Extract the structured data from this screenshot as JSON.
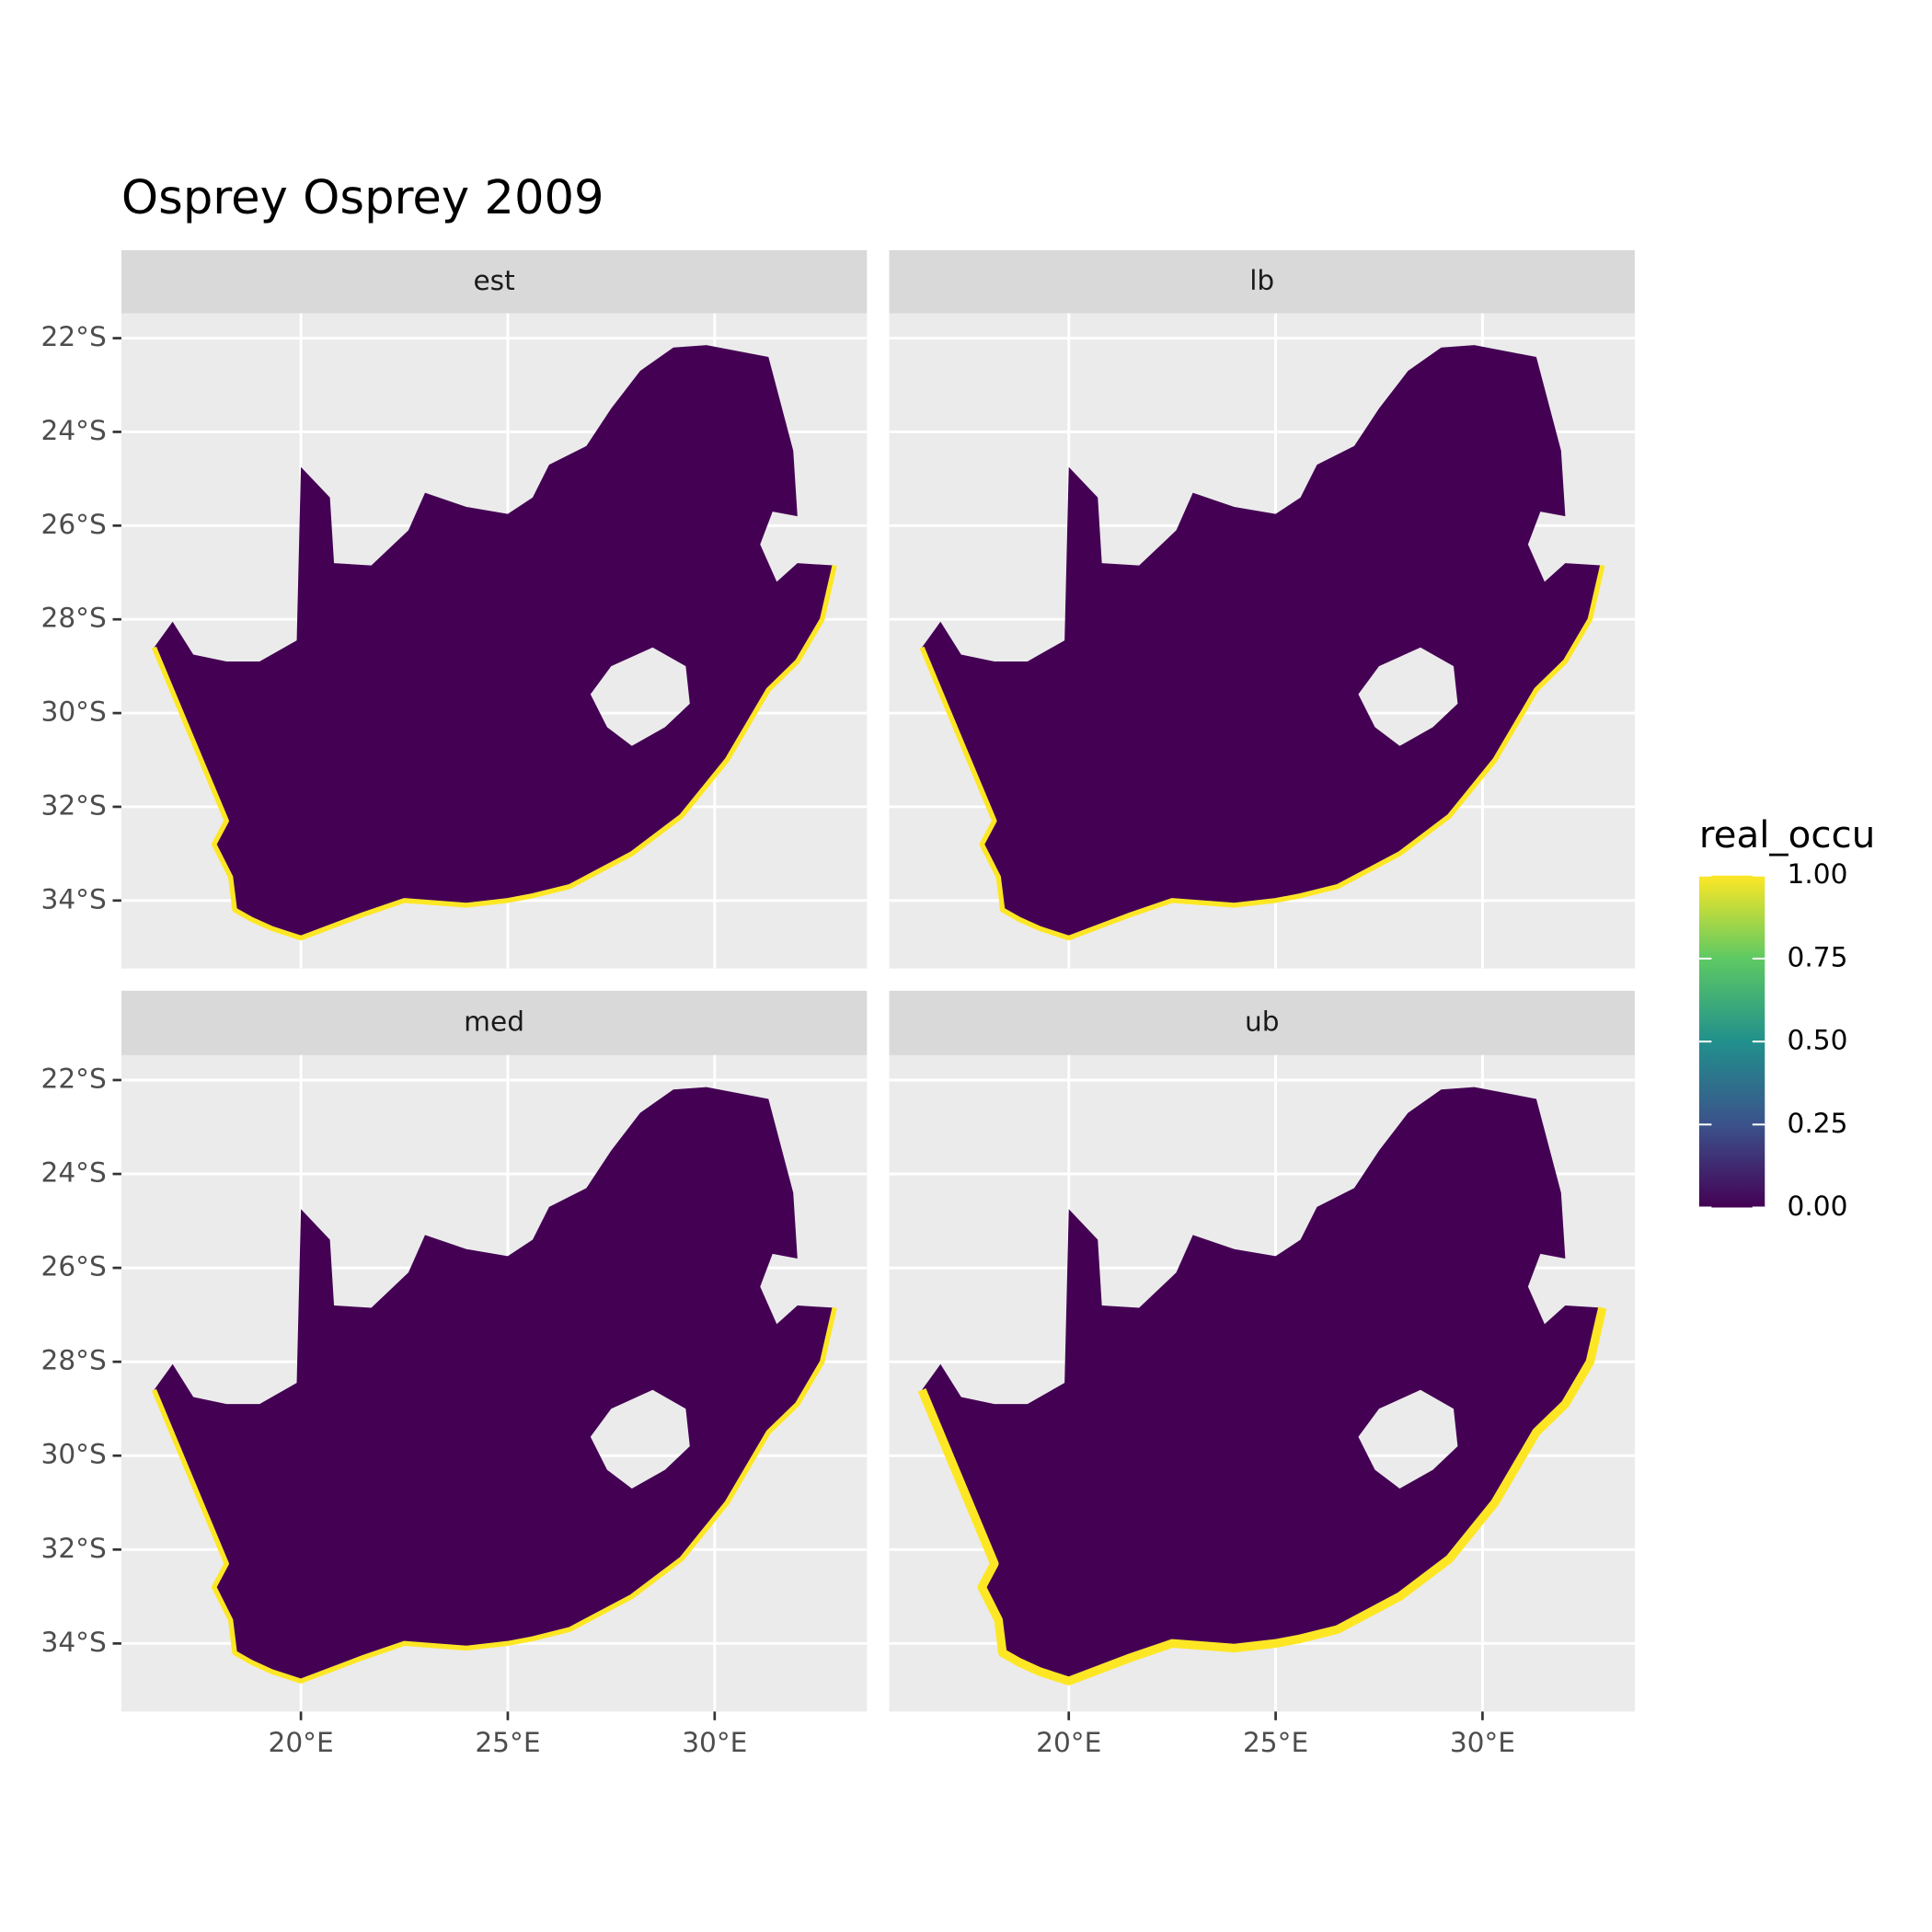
{
  "chart_data": {
    "type": "raster-map",
    "title": "Osprey Osprey 2009",
    "facets": [
      "est",
      "lb",
      "med",
      "ub"
    ],
    "xlim": [
      15.66,
      33.68
    ],
    "ylim": [
      -35.45,
      -21.47
    ],
    "xticks": [
      {
        "value": 20,
        "label": "20°E"
      },
      {
        "value": 25,
        "label": "25°E"
      },
      {
        "value": 30,
        "label": "30°E"
      }
    ],
    "yticks": [
      {
        "value": -22,
        "label": "22°S"
      },
      {
        "value": -24,
        "label": "24°S"
      },
      {
        "value": -26,
        "label": "26°S"
      },
      {
        "value": -28,
        "label": "28°S"
      },
      {
        "value": -30,
        "label": "30°S"
      },
      {
        "value": -32,
        "label": "32°S"
      },
      {
        "value": -34,
        "label": "34°S"
      }
    ],
    "grid": true,
    "legend": {
      "title": "real_occu",
      "position": "right",
      "limits": [
        0,
        1
      ],
      "ticks": [
        {
          "value": 0,
          "label": "0.00"
        },
        0.25,
        {
          "value": 0.5,
          "label": "0.50"
        },
        0.75,
        {
          "value": 1,
          "label": "1.00"
        }
      ],
      "colors": [
        "#440154",
        "#3b528b",
        "#21908c",
        "#5dc963",
        "#fde725"
      ]
    }
  }
}
